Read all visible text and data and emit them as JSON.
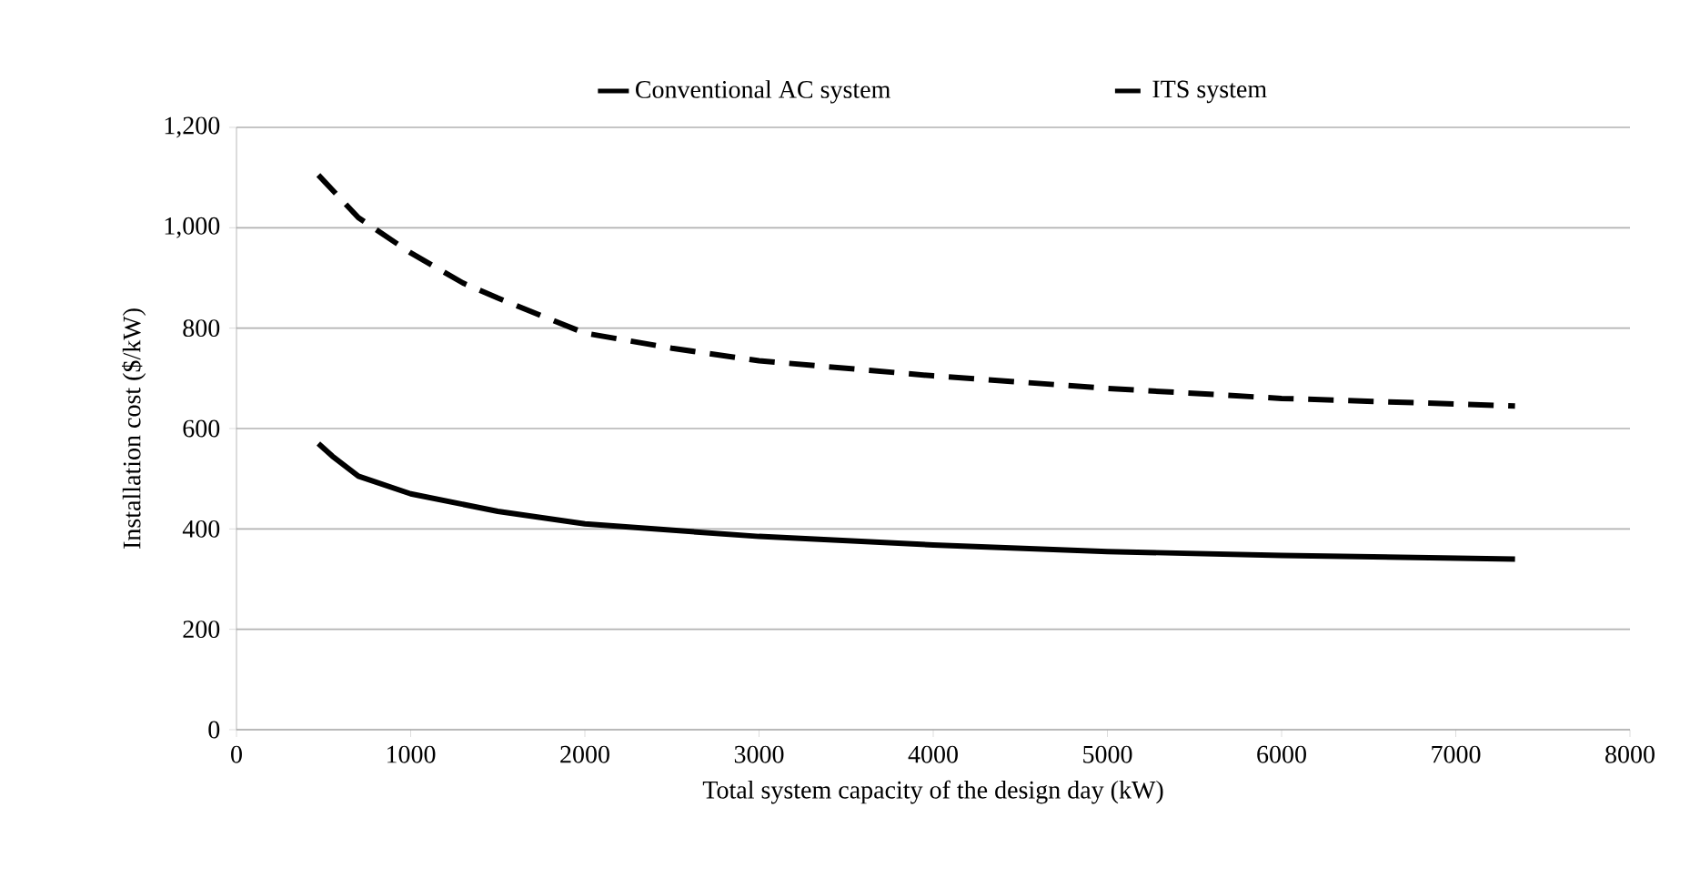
{
  "chart_data": {
    "type": "line",
    "xlabel": "Total system capacity of the design day (kW)",
    "ylabel": "Installation cost ($/kW)",
    "legend": "top",
    "grid": "y",
    "marker": "none",
    "xlim": [
      0,
      8000
    ],
    "xticks": [
      0,
      1000,
      2000,
      3000,
      4000,
      5000,
      6000,
      7000,
      8000
    ],
    "ylim": [
      0,
      1200
    ],
    "yticks": [
      0,
      200,
      400,
      600,
      800,
      {
        "value": 1000,
        "label": "1,000"
      },
      {
        "value": 1200,
        "label": "1,200"
      }
    ],
    "series": [
      {
        "name": "Conventional AC system",
        "color": "#000000",
        "line_style": "solid",
        "x": [
          470,
          550,
          700,
          1000,
          1500,
          2000,
          3000,
          4000,
          5000,
          6000,
          7340
        ],
        "values": [
          570,
          545,
          505,
          470,
          435,
          410,
          385,
          368,
          355,
          347,
          340
        ]
      },
      {
        "name": "ITS system",
        "color": "#000000",
        "line_style": "dashed",
        "x": [
          470,
          700,
          1000,
          1300,
          1500,
          2000,
          2500,
          3000,
          4000,
          5000,
          6000,
          7340
        ],
        "values": [
          1105,
          1020,
          950,
          890,
          860,
          790,
          760,
          735,
          705,
          680,
          660,
          645
        ]
      }
    ]
  }
}
